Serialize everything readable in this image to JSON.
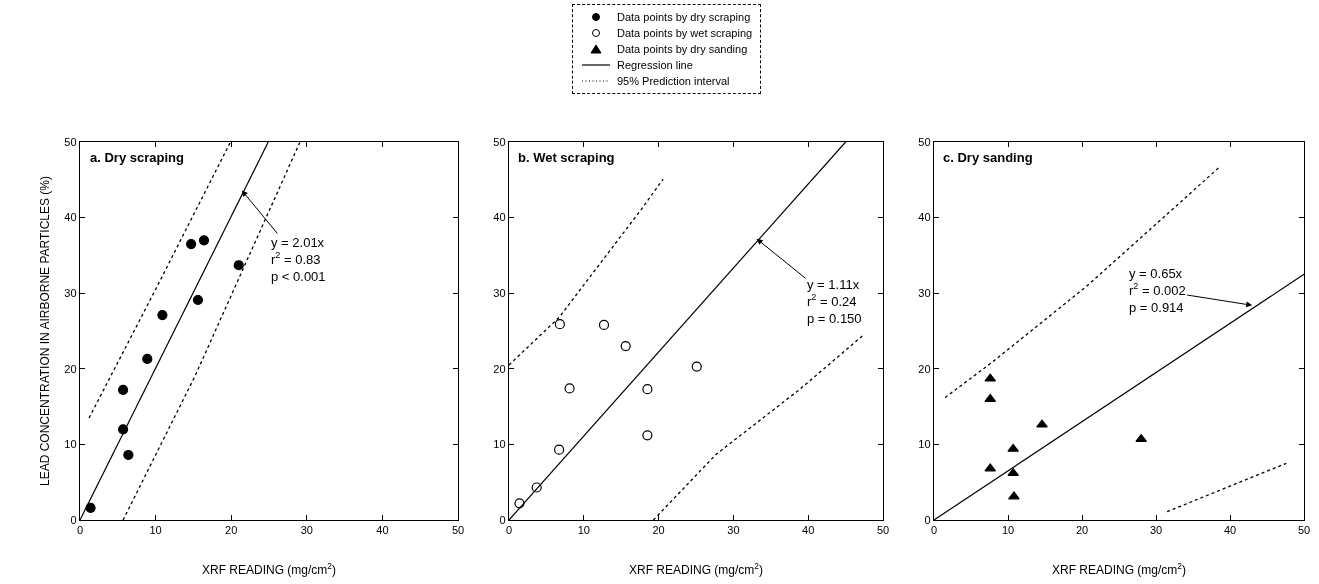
{
  "chart_data": [
    {
      "type": "scatter",
      "title": "a. Dry scraping",
      "xlabel": "XRF READING (mg/cm$^{2}$)",
      "ylabel": "LEAD CONCENTRATION IN AIRBORNE PARTICLES (%)",
      "xlim": [
        0,
        50
      ],
      "ylim": [
        0,
        50
      ],
      "xticks": [
        0,
        10,
        20,
        30,
        40,
        50
      ],
      "yticks": [
        0,
        10,
        20,
        30,
        40,
        50
      ],
      "grid": false,
      "legend": "top",
      "annotations": [
        {
          "text": "y = 2.01x\nr$^{2}$ = 0.83\np < 0.001",
          "x": 21.4,
          "y": 43.6
        }
      ],
      "series": [
        {
          "name": "Data points by dry scraping",
          "marker": "circle",
          "color": "#000000",
          "x": [
            1.4,
            5.7,
            5.7,
            6.4,
            8.9,
            10.9,
            14.7,
            16.4,
            15.6,
            21.0
          ],
          "values": [
            1.6,
            17.2,
            12.0,
            8.6,
            21.3,
            27.1,
            36.5,
            37.0,
            29.1,
            33.7
          ]
        },
        {
          "name": "Regression line",
          "type": "line",
          "marker": "none",
          "line_style": "solid",
          "color": "#000000",
          "x": [
            0,
            24.9
          ],
          "values": [
            0,
            50
          ]
        },
        {
          "name": "95% Prediction interval",
          "type": "line",
          "marker": "none",
          "line_style": "dotted",
          "color": "#000000",
          "x": [
            1.2,
            10,
            19.9
          ],
          "values": [
            13.5,
            30.5,
            50
          ]
        },
        {
          "type": "line",
          "marker": "none",
          "line_style": "dotted",
          "color": "#000000",
          "x": [
            5.7,
            15.2,
            29.1
          ],
          "values": [
            0,
            19.0,
            50
          ]
        }
      ]
    },
    {
      "type": "scatter",
      "title": "b. Wet scraping",
      "xlabel": "XRF READING (mg/cm$^{2}$)",
      "xlim": [
        0,
        50
      ],
      "ylim": [
        0,
        50
      ],
      "xticks": [
        0,
        10,
        20,
        30,
        40,
        50
      ],
      "yticks": [
        0,
        10,
        20,
        30,
        40,
        50
      ],
      "grid": false,
      "annotations": [
        {
          "text": "y = 1.11x\nr$^{2}$ = 0.24\np = 0.150",
          "x": 33.1,
          "y": 37.2
        }
      ],
      "series": [
        {
          "name": "Data points by wet scraping",
          "marker": "circle",
          "color": "#ffffff",
          "x": [
            1.4,
            3.7,
            6.7,
            6.8,
            8.1,
            12.7,
            15.6,
            18.5,
            18.5,
            25.1
          ],
          "values": [
            2.2,
            4.3,
            9.3,
            25.9,
            17.4,
            25.8,
            23.0,
            17.3,
            11.2,
            20.3
          ]
        },
        {
          "type": "line",
          "marker": "none",
          "line_style": "solid",
          "color": "#000000",
          "x": [
            0,
            45
          ],
          "values": [
            0,
            50
          ]
        },
        {
          "type": "line",
          "marker": "none",
          "line_style": "dotted",
          "color": "#000000",
          "x": [
            0,
            6.7,
            17.7,
            20.6
          ],
          "values": [
            20.5,
            26.8,
            41.1,
            45.1
          ]
        },
        {
          "type": "line",
          "marker": "none",
          "line_style": "dotted",
          "color": "#000000",
          "x": [
            19.3,
            27.7,
            38.9,
            47.3
          ],
          "values": [
            0,
            8.7,
            17.3,
            24.4
          ]
        }
      ]
    },
    {
      "type": "scatter",
      "title": "c. Dry sanding",
      "xlabel": "XRF READING (mg/cm$^{2}$)",
      "xlim": [
        0,
        50
      ],
      "ylim": [
        0,
        50
      ],
      "xticks": [
        0,
        10,
        20,
        30,
        40,
        50
      ],
      "yticks": [
        0,
        10,
        20,
        30,
        40,
        50
      ],
      "grid": false,
      "annotations": [
        {
          "text": "y = 0.65x\nr$^{2}$ = 0.002\np = 0.914",
          "x": 43,
          "y": 28.4
        }
      ],
      "series": [
        {
          "name": "Data points by dry sanding",
          "marker": "triangle",
          "color": "#000000",
          "x": [
            7.6,
            7.6,
            7.6,
            10.7,
            10.7,
            10.8,
            14.6,
            28.0
          ],
          "values": [
            18.7,
            16.0,
            6.8,
            9.4,
            6.2,
            3.1,
            12.6,
            10.7
          ]
        },
        {
          "type": "line",
          "marker": "none",
          "line_style": "solid",
          "color": "#000000",
          "x": [
            0,
            50
          ],
          "values": [
            0,
            32.5
          ]
        },
        {
          "type": "line",
          "marker": "none",
          "line_style": "dotted",
          "color": "#000000",
          "x": [
            1.5,
            7.9,
            20.6,
            38.6
          ],
          "values": [
            16.2,
            20.9,
            30.9,
            46.7
          ]
        },
        {
          "type": "line",
          "marker": "none",
          "line_style": "dotted",
          "color": "#000000",
          "x": [
            31.5,
            47.6
          ],
          "values": [
            1.1,
            7.5
          ]
        }
      ]
    }
  ]
}
